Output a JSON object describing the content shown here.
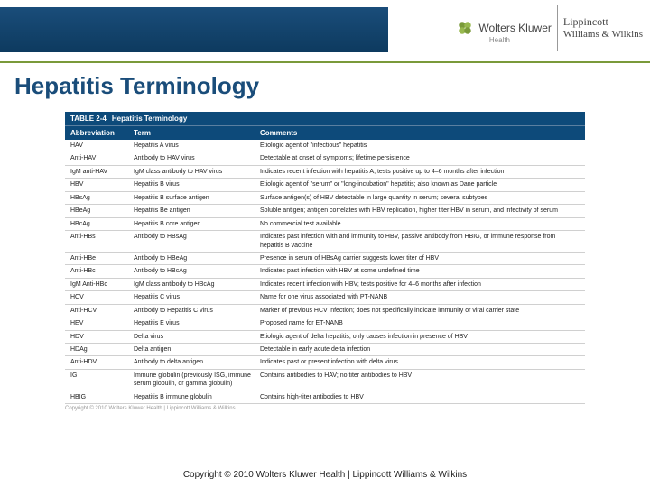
{
  "header": {
    "brand1": "Wolters Kluwer",
    "brand1_sub": "Health",
    "brand2_top": "Lippincott",
    "brand2_bot": "Williams & Wilkins",
    "band_color": "#0d3a5f",
    "underline_color": "#7a9a3a"
  },
  "title": "Hepatitis Terminology",
  "title_color": "#1a4d7a",
  "table": {
    "caption_label": "TABLE 2-4",
    "caption_text": "Hepatitis Terminology",
    "header_bg": "#0d4a7a",
    "columns": [
      "Abbreviation",
      "Term",
      "Comments"
    ],
    "rows": [
      [
        "HAV",
        "Hepatitis A virus",
        "Etiologic agent of \"infectious\" hepatitis"
      ],
      [
        "Anti-HAV",
        "Antibody to HAV virus",
        "Detectable at onset of symptoms; lifetime persistence"
      ],
      [
        "IgM anti-HAV",
        "IgM class antibody to HAV virus",
        "Indicates recent infection with hepatitis A; tests positive up to 4–6 months after infection"
      ],
      [
        "HBV",
        "Hepatitis B virus",
        "Etiologic agent of \"serum\" or \"long-incubation\" hepatitis; also known as Dane particle"
      ],
      [
        "HBsAg",
        "Hepatitis B surface antigen",
        "Surface antigen(s) of HBV detectable in large quantity in serum; several subtypes"
      ],
      [
        "HBeAg",
        "Hepatitis Be antigen",
        "Soluble antigen; antigen correlates with HBV replication, higher titer HBV in serum, and infectivity of serum"
      ],
      [
        "HBcAg",
        "Hepatitis B core antigen",
        "No commercial test available"
      ],
      [
        "Anti-HBs",
        "Antibody to HBsAg",
        "Indicates past infection with and immunity to HBV, passive antibody from HBIG, or immune response from hepatitis B vaccine"
      ],
      [
        "Anti-HBe",
        "Antibody to HBeAg",
        "Presence in serum of HBsAg carrier suggests lower titer of HBV"
      ],
      [
        "Anti-HBc",
        "Antibody to HBcAg",
        "Indicates past infection with HBV at some undefined time"
      ],
      [
        "IgM Anti-HBc",
        "IgM class antibody to HBcAg",
        "Indicates recent infection with HBV; tests positive for 4–6 months after infection"
      ],
      [
        "HCV",
        "Hepatitis C virus",
        "Name for one virus associated with PT-NANB"
      ],
      [
        "Anti-HCV",
        "Antibody to Hepatitis C virus",
        "Marker of previous HCV infection; does not specifically indicate immunity or viral carrier state"
      ],
      [
        "HEV",
        "Hepatitis E virus",
        "Proposed name for ET-NANB"
      ],
      [
        "HDV",
        "Delta virus",
        "Etiologic agent of delta hepatitis; only causes infection in presence of HBV"
      ],
      [
        "HDAg",
        "Delta antigen",
        "Detectable in early acute delta infection"
      ],
      [
        "Anti-HDV",
        "Antibody to delta antigen",
        "Indicates past or present infection with delta virus"
      ],
      [
        "IG",
        "Immune globulin (previously ISG, immune serum globulin, or gamma globulin)",
        "Contains antibodies to HAV; no titer antibodies to HBV"
      ],
      [
        "HBIG",
        "Hepatitis B immune globulin",
        "Contains high-titer antibodies to HBV"
      ]
    ]
  },
  "tiny_copyright": "Copyright © 2010 Wolters Kluwer Health | Lippincott Williams & Wilkins",
  "footer_copyright": "Copyright © 2010 Wolters Kluwer Health | Lippincott Williams & Wilkins"
}
